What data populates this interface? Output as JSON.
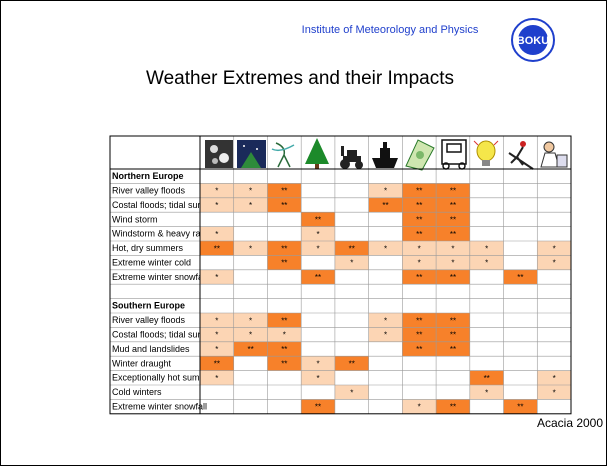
{
  "header": {
    "institute": "Institute of Meteorology and Physics",
    "logo": "BOKU",
    "title": "Weather Extremes and their Impacts"
  },
  "table": {
    "star_colors": [
      "#fcd5b4",
      "#f7812a"
    ],
    "sections": [
      {
        "title": "Northern Europe",
        "rows": [
          {
            "label": "River valley floods",
            "cells": [
              "*",
              "*",
              "**",
              null,
              null,
              "*",
              "**",
              "**",
              null,
              null,
              null
            ]
          },
          {
            "label": "Costal floods; tidal surges",
            "cells": [
              "*",
              "*",
              "**",
              null,
              null,
              "**",
              "**",
              "**",
              null,
              null,
              null
            ]
          },
          {
            "label": "Wind storm",
            "cells": [
              null,
              null,
              null,
              "**",
              null,
              null,
              "**",
              "**",
              null,
              null,
              null
            ]
          },
          {
            "label": "Windstorm & heavy rain",
            "cells": [
              "*",
              null,
              null,
              "*",
              null,
              null,
              "**",
              "**",
              null,
              null,
              null
            ]
          },
          {
            "label": "Hot, dry summers",
            "cells": [
              "**",
              "*",
              "**",
              "*",
              "**",
              "*",
              "*",
              "*",
              "*",
              null,
              "*"
            ]
          },
          {
            "label": "Extreme winter cold",
            "cells": [
              null,
              null,
              "**",
              null,
              "*",
              null,
              "*",
              "*",
              "*",
              null,
              "*"
            ]
          },
          {
            "label": "Extreme winter snowfall",
            "cells": [
              "*",
              null,
              null,
              "**",
              null,
              null,
              "**",
              "**",
              null,
              "**",
              null
            ]
          }
        ]
      },
      {
        "title": "Southern Europe",
        "rows": [
          {
            "label": "River valley floods",
            "cells": [
              "*",
              "*",
              "**",
              null,
              null,
              "*",
              "**",
              "**",
              null,
              null,
              null
            ]
          },
          {
            "label": "Costal floods; tidal surges",
            "cells": [
              "*",
              "*",
              "*",
              null,
              null,
              "*",
              "**",
              "**",
              null,
              null,
              null
            ]
          },
          {
            "label": "Mud and landslides",
            "cells": [
              "*",
              "**",
              "**",
              null,
              null,
              null,
              "**",
              "**",
              null,
              null,
              null
            ]
          },
          {
            "label": "Winter draught",
            "cells": [
              "**",
              null,
              "**",
              "*",
              "**",
              null,
              null,
              null,
              null,
              null,
              null
            ]
          },
          {
            "label": "Exceptionally hot summers",
            "cells": [
              "*",
              null,
              null,
              "*",
              null,
              null,
              null,
              null,
              "**",
              null,
              "*"
            ]
          },
          {
            "label": "Cold winters",
            "cells": [
              null,
              null,
              null,
              null,
              "*",
              null,
              null,
              null,
              "*",
              null,
              "*"
            ]
          },
          {
            "label": "Extreme winter snowfall",
            "cells": [
              null,
              null,
              null,
              "**",
              null,
              null,
              "*",
              "**",
              null,
              "**",
              null
            ]
          }
        ]
      }
    ]
  },
  "footer": {
    "source": "Acacia 2000"
  }
}
